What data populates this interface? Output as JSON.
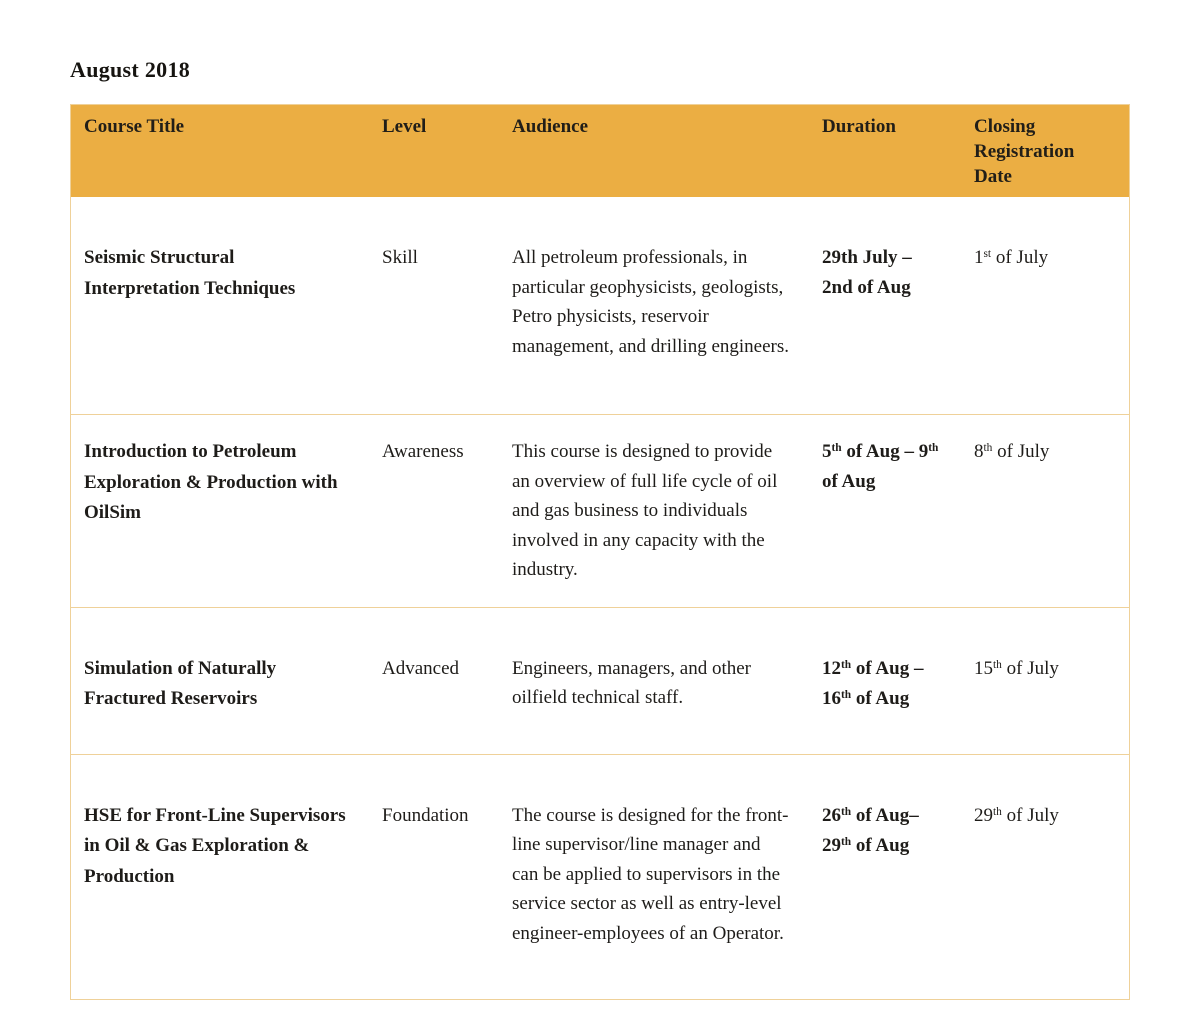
{
  "page": {
    "title": "August 2018"
  },
  "colors": {
    "header_background": "#ebae43",
    "table_border": "#efd199",
    "text": "#1e1c19"
  },
  "table": {
    "headers": [
      "Course Title",
      "Level",
      "Audience",
      "Duration",
      "Closing Registration Date"
    ],
    "rows": [
      {
        "title": "Seismic Structural Interpretation Techniques",
        "level": "Skill",
        "audience": "All petroleum professionals, in particular geophysicists, geologists, Petro physicists, reservoir management, and drilling engineers.",
        "duration": "29th July – 2nd of Aug",
        "closing": "1^{st} of July"
      },
      {
        "title": "Introduction to Petroleum Exploration & Production with OilSim",
        "level": "Awareness",
        "audience": "This course is designed to provide an overview of full life cycle of oil and gas business to individuals involved in any capacity with the industry.",
        "duration": "5^{th} of Aug – 9^{th} of Aug",
        "closing": "8^{th} of July"
      },
      {
        "title": "Simulation of Naturally Fractured Reservoirs",
        "level": "Advanced",
        "audience": "Engineers, managers, and other oilfield technical staff.",
        "duration": "12^{th} of Aug – 16^{th} of Aug",
        "closing": "15^{th} of July"
      },
      {
        "title": "HSE for Front-Line Supervisors in Oil & Gas Exploration & Production",
        "level": "Foundation",
        "audience": "The course is designed for the front-line supervisor/line manager and can be applied to supervisors in the service sector as well as entry-level engineer-employees of an Operator.",
        "duration": "26^{th} of Aug– 29^{th} of Aug",
        "closing": "29^{th} of July"
      }
    ]
  }
}
